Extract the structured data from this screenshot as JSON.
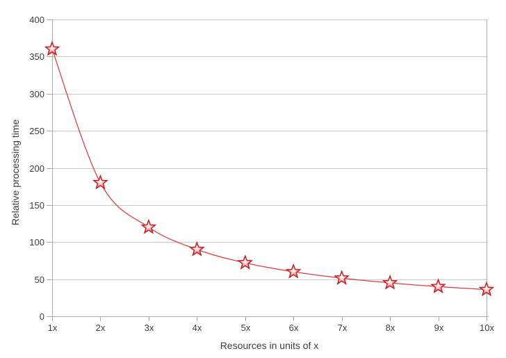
{
  "chart_data": {
    "type": "line",
    "categories": [
      "1x",
      "2x",
      "3x",
      "4x",
      "5x",
      "6x",
      "7x",
      "8x",
      "9x",
      "10x"
    ],
    "values": [
      360,
      180,
      120,
      90,
      72,
      60,
      51.4,
      45,
      40,
      36
    ],
    "xlabel": "Resources in units of x",
    "ylabel": "Relative processing time",
    "ylim": [
      0,
      400
    ],
    "ytick_step": 50,
    "grid": "horizontal",
    "legend_position": "none",
    "marker": "star",
    "colors": {
      "line": "#e03c3e",
      "marker_stroke": "#c2191f",
      "marker_fill_center": "#ffffff",
      "marker_fill_mid": "#f2a0a0",
      "marker_fill_edge": "#dd3c3c",
      "gridline": "#c9c9c9",
      "axis": "#a9a9a9",
      "text": "#3c3c3c",
      "background": "#ffffff"
    }
  }
}
